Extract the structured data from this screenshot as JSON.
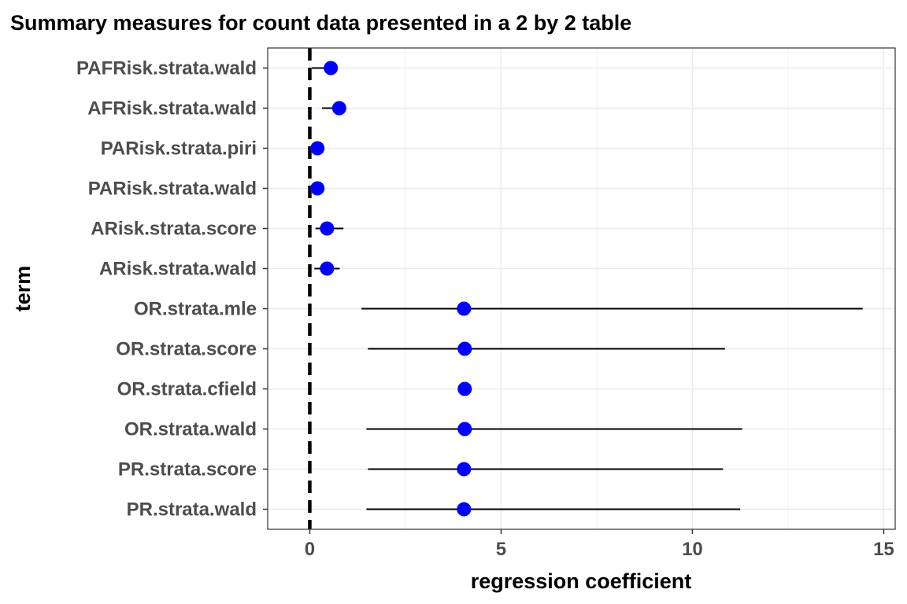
{
  "chart_data": {
    "type": "scatter",
    "title": "Summary measures for count data presented in a 2 by 2 table",
    "xlabel": "regression coefficient",
    "ylabel": "term",
    "xlim": [
      -1.1,
      15.3
    ],
    "xticks": [
      0,
      5,
      10,
      15
    ],
    "reference_line_x": 0,
    "grid": true,
    "point_color": "#0000ff",
    "terms": [
      "PAFRisk.strata.wald",
      "AFRisk.strata.wald",
      "PARisk.strata.piri",
      "PARisk.strata.wald",
      "ARisk.strata.score",
      "ARisk.strata.wald",
      "OR.strata.mle",
      "OR.strata.score",
      "OR.strata.cfield",
      "OR.strata.wald",
      "PR.strata.score",
      "PR.strata.wald"
    ],
    "estimates": [
      0.55,
      0.77,
      0.2,
      0.2,
      0.45,
      0.45,
      4.03,
      4.05,
      4.05,
      4.05,
      4.03,
      4.03
    ],
    "conf_low": [
      0.05,
      0.32,
      0.18,
      0.18,
      0.15,
      0.12,
      1.35,
      1.52,
      4.05,
      1.48,
      1.52,
      1.48
    ],
    "conf_high": [
      0.66,
      0.86,
      0.22,
      0.22,
      0.88,
      0.78,
      14.45,
      10.85,
      4.05,
      11.3,
      10.8,
      11.25
    ]
  }
}
